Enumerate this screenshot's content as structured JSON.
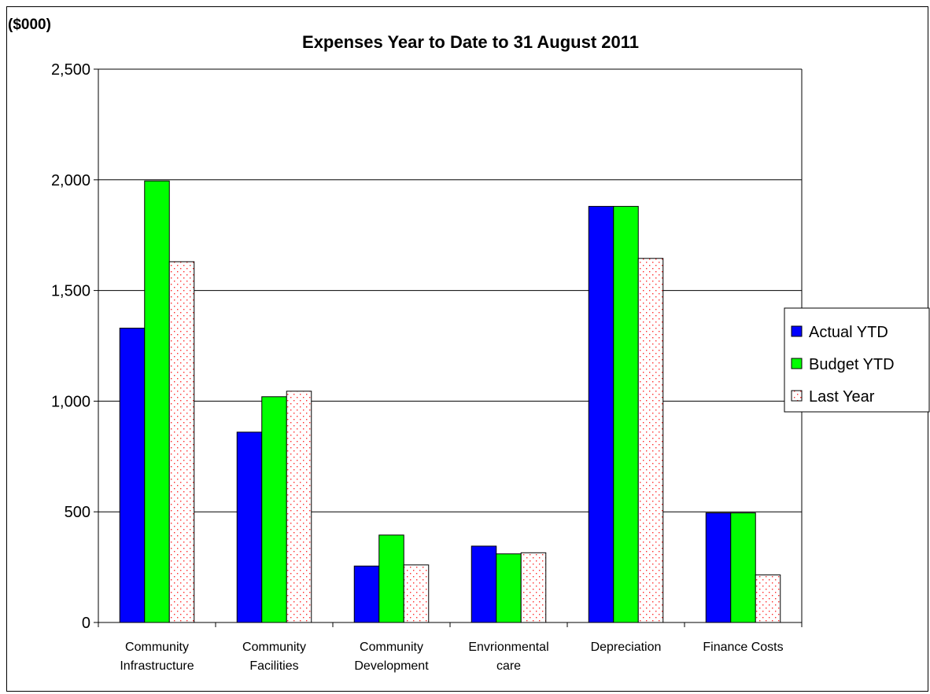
{
  "chart_data": {
    "type": "bar",
    "title": "Expenses Year to Date to 31 August 2011",
    "unit_label": "($000)",
    "categories": [
      [
        "Community",
        "Infrastructure"
      ],
      [
        "Community",
        "Facilities"
      ],
      [
        "Community",
        "Development"
      ],
      [
        "Envrionmental",
        "care"
      ],
      [
        "Depreciation"
      ],
      [
        "Finance Costs"
      ]
    ],
    "series": [
      {
        "name": "Actual YTD",
        "color": "#0000ff",
        "pattern": "solid",
        "values": [
          1330,
          860,
          255,
          345,
          1880,
          495
        ]
      },
      {
        "name": "Budget YTD",
        "color": "#00ff00",
        "pattern": "solid",
        "values": [
          1995,
          1020,
          395,
          310,
          1880,
          495
        ]
      },
      {
        "name": "Last Year",
        "color": "#ff0000",
        "pattern": "dotted",
        "values": [
          1630,
          1045,
          260,
          315,
          1645,
          215
        ]
      }
    ],
    "ylim": [
      0,
      2500
    ],
    "yticks": [
      0,
      500,
      1000,
      1500,
      2000,
      2500
    ],
    "ytick_labels": [
      "0",
      "500",
      "1,000",
      "1,500",
      "2,000",
      "2,500"
    ],
    "grid": true,
    "legend_position": "right"
  }
}
